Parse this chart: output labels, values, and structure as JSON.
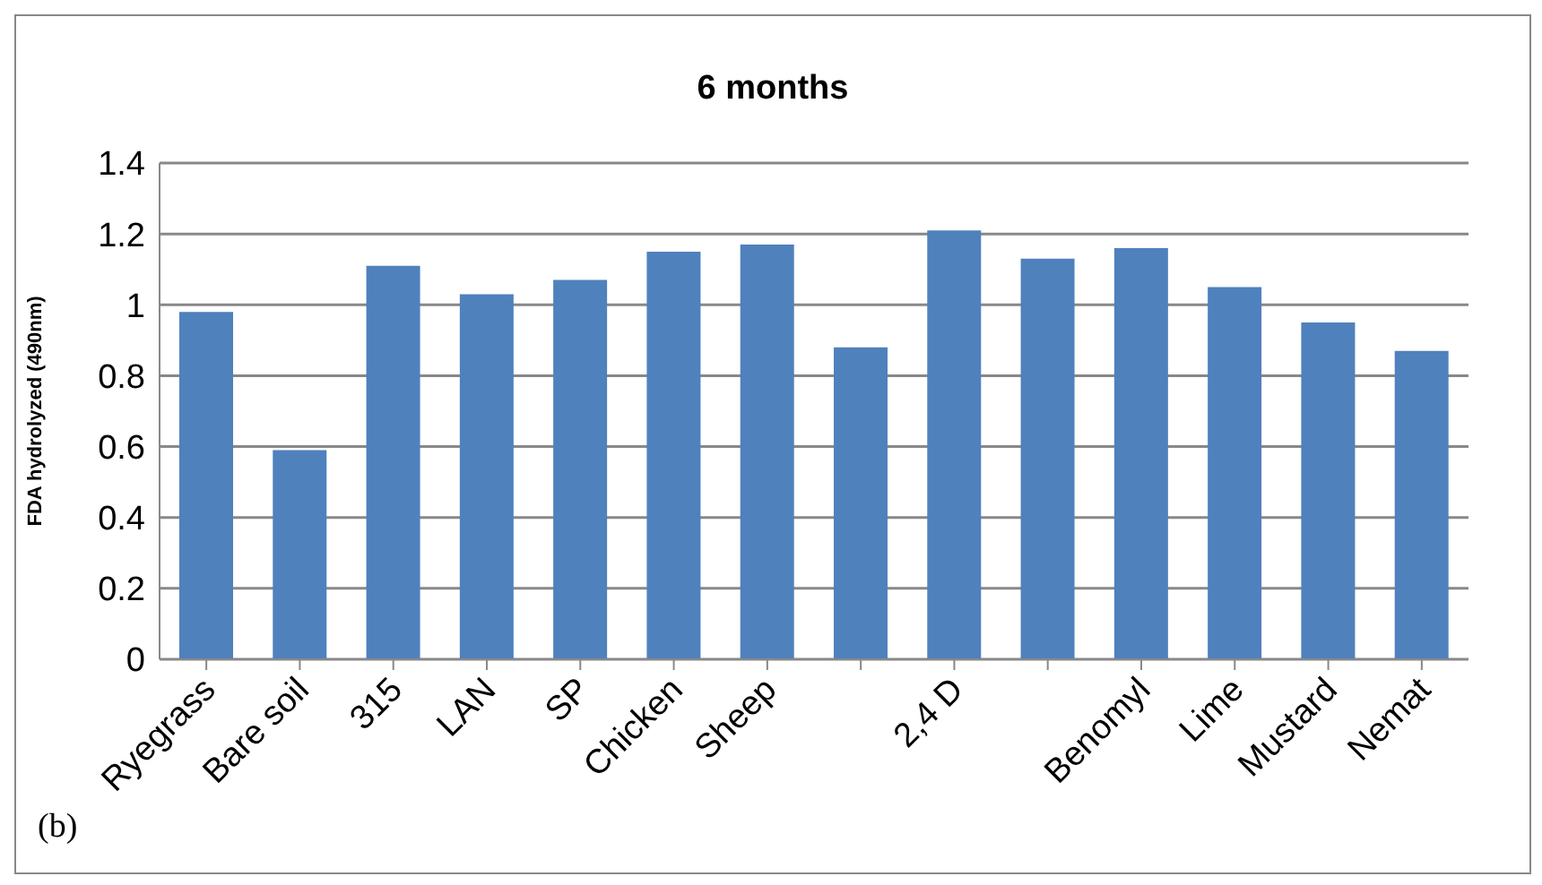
{
  "chart_data": {
    "type": "bar",
    "title": "6 months",
    "ylabel": "FDA hydrolyzed  (490nm)",
    "categories": [
      "Ryegrass",
      "Bare soil",
      "315",
      "LAN",
      "SP",
      "Chicken",
      "Sheep",
      null,
      "2,4 D",
      null,
      "Benomyl",
      "Lime",
      "Mustard",
      "Nemat"
    ],
    "values": [
      0.98,
      0.59,
      1.11,
      1.03,
      1.07,
      1.15,
      1.17,
      0.88,
      1.21,
      1.13,
      1.16,
      1.05,
      0.95,
      0.87
    ],
    "color": "#4f81bd",
    "ylim": [
      0,
      1.4
    ],
    "yticks": [
      0,
      0.2,
      0.4,
      0.6,
      0.8,
      1,
      1.2,
      1.4
    ],
    "grid": "y",
    "annotations": [
      "(b)"
    ]
  }
}
